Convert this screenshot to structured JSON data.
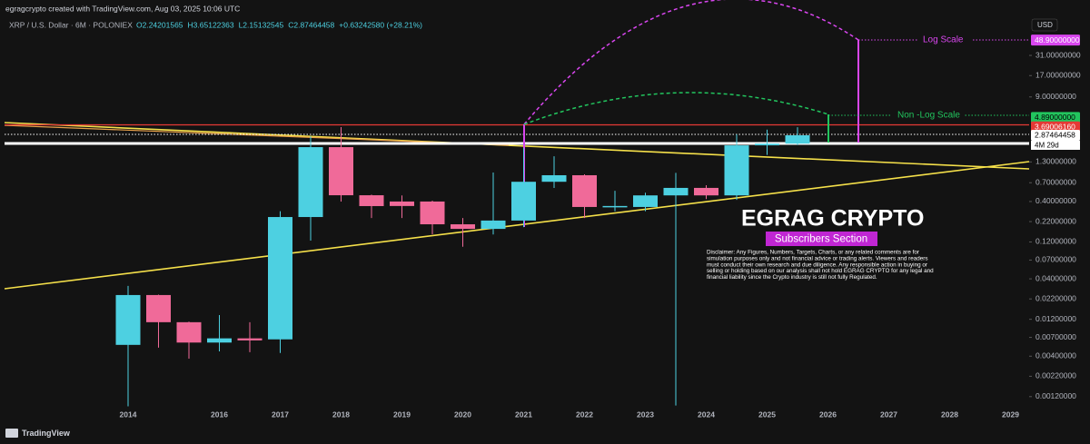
{
  "header": {
    "credit": "egragcrypto created with TradingView.com, Aug 03, 2025 10:06 UTC",
    "symbol": "XRP / U.S. Dollar · 6M · POLONIEX",
    "ohlc": [
      "O2.24201565",
      "H3.65122363",
      "L2.15132545",
      "C2.87464458",
      "+0.63242580 (+28.21%)"
    ]
  },
  "footer": {
    "brand": "TradingView"
  },
  "chart_data": {
    "type": "candlestick",
    "log_scale": true,
    "grid": false,
    "currency": "USD",
    "categories": [
      "2014",
      null,
      null,
      "2016",
      null,
      "2017",
      null,
      "2018",
      null,
      "2019",
      null,
      "2020",
      null,
      "2021",
      null,
      "2022",
      null,
      "2023",
      null,
      "2024",
      null,
      "2025",
      null,
      "2026",
      null,
      "2027",
      null,
      "2028",
      null,
      "2029"
    ],
    "up_color": "#4dd0e1",
    "down_color": "#f06a99",
    "series": {
      "open": [
        0.0056,
        0.0247,
        0.011,
        0.006,
        0.0068,
        0.0066,
        0.252,
        2.02,
        0.482,
        0.4,
        0.4,
        0.203,
        0.177,
        0.227,
        0.72,
        0.875,
        0.34,
        0.34,
        0.48,
        0.6,
        0.48,
        2.13,
        2.24201565,
        null,
        null,
        null,
        null,
        null,
        null,
        null
      ],
      "high": [
        0.0324,
        0.025,
        0.0112,
        0.0136,
        0.011,
        0.3,
        2.79,
        3.66,
        0.49,
        0.48,
        0.41,
        0.245,
        0.95,
        1.96,
        1.54,
        0.9,
        0.55,
        0.52,
        0.94,
        0.65,
        2.95,
        3.4,
        3.65122363,
        null,
        null,
        null,
        null,
        null,
        null,
        null
      ],
      "low": [
        0.0009,
        0.00515,
        0.00372,
        0.00462,
        0.0045,
        0.0044,
        0.125,
        0.4,
        0.245,
        0.245,
        0.151,
        0.104,
        0.15,
        0.187,
        0.6,
        0.245,
        0.3,
        0.3,
        0.00092,
        0.43,
        0.42,
        1.6,
        2.15132545,
        null,
        null,
        null,
        null,
        null,
        null,
        null
      ],
      "close": [
        0.0247,
        0.011,
        0.006,
        0.0068,
        0.0064,
        0.252,
        2.02,
        0.482,
        0.349,
        0.35,
        0.203,
        0.177,
        0.227,
        0.72,
        0.875,
        0.34,
        0.35,
        0.48,
        0.6,
        0.48,
        2.13,
        2.24,
        2.87464458,
        null,
        null,
        null,
        null,
        null,
        null,
        null
      ]
    },
    "ylim": [
      0.00084,
      94
    ],
    "yticks": [
      {
        "value": 31,
        "label": "31.00000000"
      },
      {
        "value": 17,
        "label": "17.00000000"
      },
      {
        "value": 9,
        "label": "9.00000000"
      },
      {
        "value": 1.3,
        "label": "1.30000000"
      },
      {
        "value": 0.7,
        "label": "0.70000000"
      },
      {
        "value": 0.4,
        "label": "0.40000000"
      },
      {
        "value": 0.22,
        "label": "0.22000000"
      },
      {
        "value": 0.12,
        "label": "0.12000000"
      },
      {
        "value": 0.07,
        "label": "0.07000000"
      },
      {
        "value": 0.04,
        "label": "0.04000000"
      },
      {
        "value": 0.022,
        "label": "0.02200000"
      },
      {
        "value": 0.012,
        "label": "0.01200000"
      },
      {
        "value": 0.007,
        "label": "0.00700000"
      },
      {
        "value": 0.004,
        "label": "0.00400000"
      },
      {
        "value": 0.0022,
        "label": "0.00220000"
      },
      {
        "value": 0.0012,
        "label": "0.00120000"
      }
    ],
    "price_labels": [
      {
        "value": 48.9,
        "label": "48.90000000",
        "bg": "#d946ef",
        "text_color": "#ffffff"
      },
      {
        "value": 4.89,
        "label": "4.89000000",
        "bg": "#22c55e",
        "text_color": "#000000"
      },
      {
        "value": 3.6900616,
        "label": "3.69006160",
        "bg": "#e53935",
        "text_color": "#ffffff"
      },
      {
        "value": 2.87464458,
        "label": "2.87464458",
        "bg": "#ffffff",
        "text_color": "#000000"
      }
    ],
    "countdown": "4M 29d",
    "annotations": {
      "log": "Log Scale",
      "non_log": "Non -Log Scale",
      "watermark": "EGRAG CRYPTO",
      "badge": "Subscribers Section",
      "disclaimer": [
        "Disclaimer: Any Figures, Numbers, Targets, Charts, or any related comments are for",
        "simulation purposes only and not financial advice or trading alerts. Viewers and readers",
        "must conduct their own research and due diligence. Any responsible action in buying or",
        "selling or holding based on our analysis shall not hold EGRAG CRYPTO for any legal and",
        "financial liability since the Crypto industry is still not fully Regulated."
      ]
    }
  }
}
